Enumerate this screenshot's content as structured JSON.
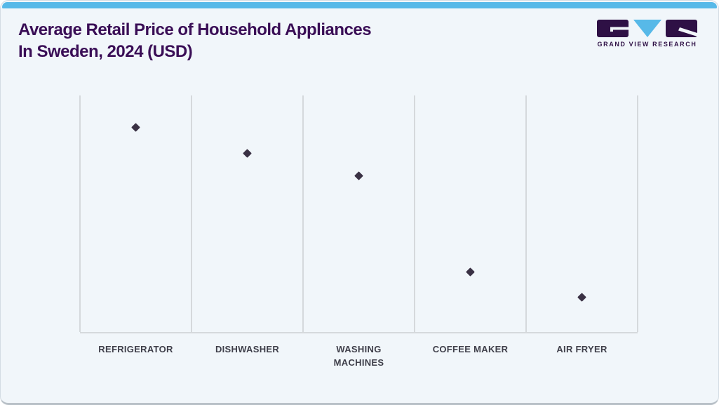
{
  "card": {
    "background": "#f1f6fa",
    "border_color": "#d3dce3",
    "top_bar_color": "#57b9e8"
  },
  "header": {
    "title_line1": "Average Retail Price of Household Appliances",
    "title_line2": "In Sweden, 2024 (USD)",
    "title_color": "#3a0e56"
  },
  "logo": {
    "text": "GRAND VIEW RESEARCH",
    "purple": "#2e1045",
    "blue": "#57b9e8"
  },
  "chart_data": {
    "type": "scatter",
    "title": "Average Retail Price of Household Appliances In Sweden, 2024 (USD)",
    "xlabel": "",
    "ylabel": "",
    "categories": [
      "REFRIGERATOR",
      "DISHWASHER",
      "WASHING MACHINES",
      "COFFEE MAKER",
      "AIR FRYER"
    ],
    "display_labels": [
      "REFRIGERATOR",
      "DISHWASHER",
      "WASHING\nMACHINES",
      "COFFEE MAKER",
      "AIR FRYER"
    ],
    "values_fraction_of_plot_height": [
      0.866,
      0.754,
      0.659,
      0.255,
      0.148
    ],
    "y_axis": "no numeric scale or tick labels shown; values ranked Refrigerator > Dishwasher > Washing Machines > Coffee Maker > Air Fryer",
    "marker": "diamond",
    "marker_color": "#3a3144",
    "grid": "vertical category separator lines and bottom baseline only",
    "gridline_color": "#d5d9dc",
    "label_color": "#3f3f4a",
    "legend": "none"
  }
}
